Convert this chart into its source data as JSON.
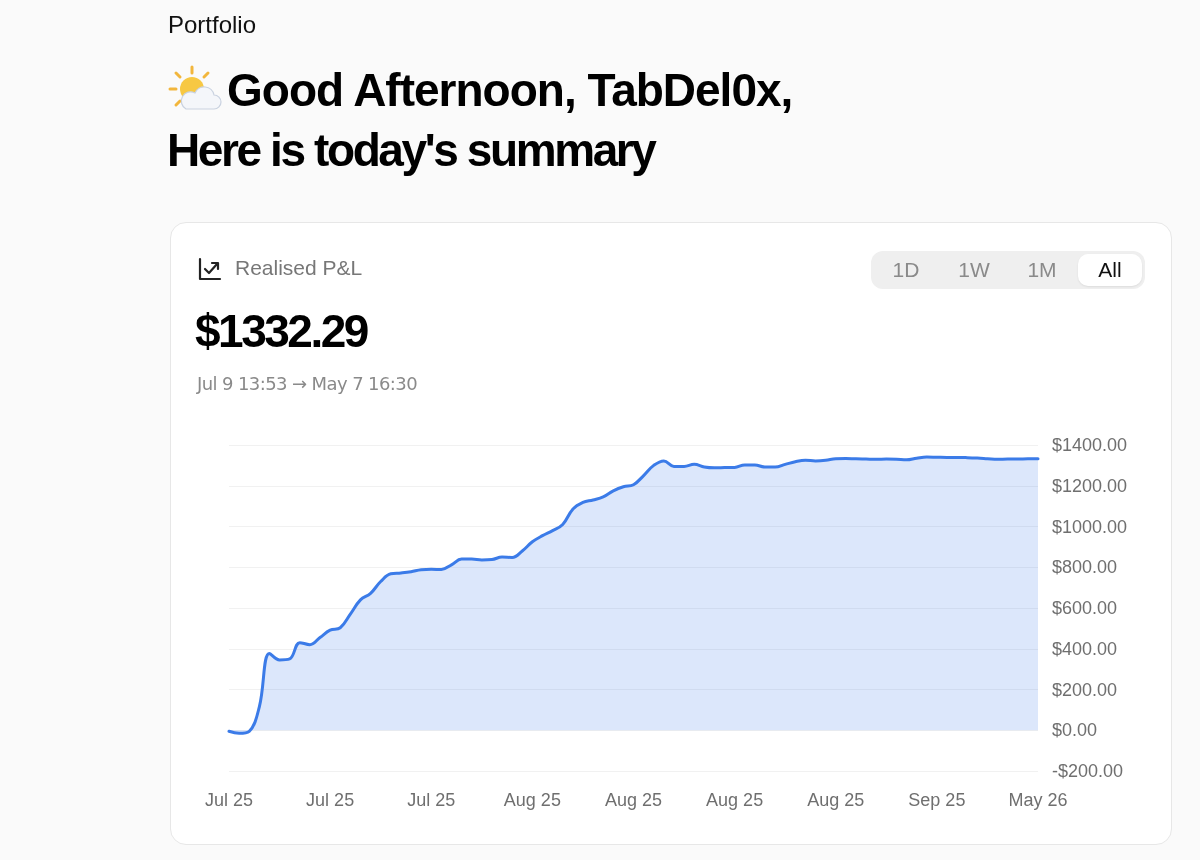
{
  "chart_data": {
    "type": "area",
    "title": "Realised P&L",
    "subtitle": "$1332.29",
    "annotations": [
      "Portfolio",
      "Good Afternoon, TabDel0x,",
      "Here is today's summary",
      "Jul 9 13:53 → May 7 16:30",
      "1D",
      "1W",
      "1M",
      "All"
    ],
    "categories": [
      "Jul 25",
      null,
      null,
      null,
      null,
      null,
      null,
      null,
      null,
      null,
      "Jul 25",
      null,
      null,
      null,
      null,
      null,
      null,
      null,
      null,
      null,
      "Jul 25",
      null,
      null,
      null,
      null,
      null,
      null,
      null,
      null,
      null,
      "Aug 25",
      null,
      null,
      null,
      null,
      null,
      null,
      null,
      null,
      null,
      "Aug 25",
      null,
      null,
      null,
      null,
      null,
      null,
      null,
      null,
      null,
      "Aug 25",
      null,
      null,
      null,
      null,
      null,
      null,
      null,
      null,
      null,
      "Aug 25",
      null,
      null,
      null,
      null,
      null,
      null,
      null,
      null,
      null,
      "Sep 25",
      null,
      null,
      null,
      null,
      null,
      null,
      null,
      null,
      null,
      "May 26"
    ],
    "series": [
      {
        "color": "#3b7be8",
        "values": [
          -5,
          -15,
          -5,
          115,
          377,
          345,
          350,
          430,
          420,
          455,
          491,
          503,
          570,
          640,
          672,
          730,
          768,
          772,
          778,
          788,
          790,
          789,
          812,
          840,
          840,
          836,
          838,
          850,
          848,
          880,
          925,
          955,
          980,
          1010,
          1085,
          1118,
          1130,
          1145,
          1175,
          1195,
          1205,
          1250,
          1300,
          1322,
          1295,
          1295,
          1305,
          1292,
          1288,
          1289,
          1290,
          1302,
          1302,
          1292,
          1292,
          1305,
          1318,
          1325,
          1322,
          1325,
          1333,
          1334,
          1332,
          1331,
          1330,
          1331,
          1330,
          1327,
          1335,
          1341,
          1340,
          1339,
          1339,
          1338,
          1336,
          1333,
          1330,
          1331,
          1331,
          1332,
          1332
        ]
      }
    ],
    "ylim": [
      -200,
      1400
    ],
    "yticks": [
      {
        "value": -200,
        "label": "-$200.00"
      },
      {
        "value": 0,
        "label": "$0.00"
      },
      {
        "value": 200,
        "label": "$200.00"
      },
      {
        "value": 400,
        "label": "$400.00"
      },
      {
        "value": 600,
        "label": "$600.00"
      },
      {
        "value": 800,
        "label": "$800.00"
      },
      {
        "value": 1000,
        "label": "$1000.00"
      },
      {
        "value": 1200,
        "label": "$1200.00"
      },
      {
        "value": 1400,
        "label": "$1400.00"
      }
    ],
    "grid": "y",
    "marker": "none"
  }
}
